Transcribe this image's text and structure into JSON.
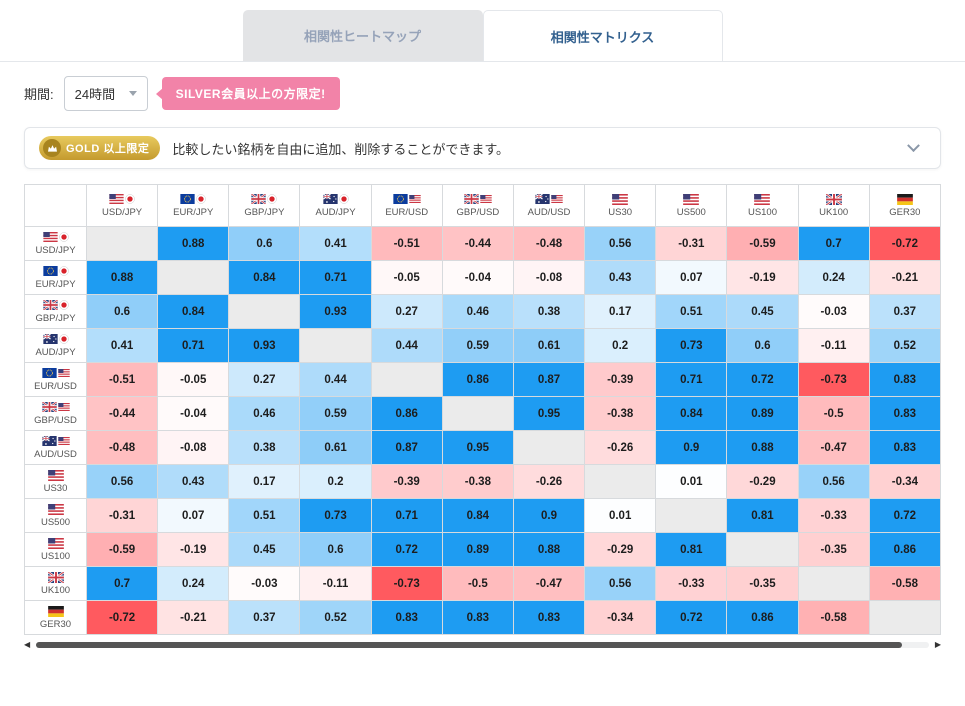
{
  "tabs": {
    "heatmap": "相関性ヒートマップ",
    "matrix": "相関性マトリクス"
  },
  "period": {
    "label": "期間:",
    "selected": "24時間",
    "badge": "SILVER会員以上の方限定!"
  },
  "gold_banner": {
    "badge": "GOLD 以上限定",
    "text": "比較したい銘柄を自由に追加、削除することができます。"
  },
  "colors": {
    "positive": "#1e9cf2",
    "negative": "#ff5a5f",
    "diagonal": "#ebebeb"
  },
  "chart_data": {
    "type": "heatmap",
    "title": "相関性マトリクス",
    "instruments": [
      {
        "name": "USD/JPY",
        "flags": [
          "us",
          "jp"
        ]
      },
      {
        "name": "EUR/JPY",
        "flags": [
          "eu",
          "jp"
        ]
      },
      {
        "name": "GBP/JPY",
        "flags": [
          "gb",
          "jp"
        ]
      },
      {
        "name": "AUD/JPY",
        "flags": [
          "au",
          "jp"
        ]
      },
      {
        "name": "EUR/USD",
        "flags": [
          "eu",
          "us"
        ]
      },
      {
        "name": "GBP/USD",
        "flags": [
          "gb",
          "us"
        ]
      },
      {
        "name": "AUD/USD",
        "flags": [
          "au",
          "us"
        ]
      },
      {
        "name": "US30",
        "flags": [
          "us"
        ]
      },
      {
        "name": "US500",
        "flags": [
          "us"
        ]
      },
      {
        "name": "US100",
        "flags": [
          "us"
        ]
      },
      {
        "name": "UK100",
        "flags": [
          "gb"
        ]
      },
      {
        "name": "GER30",
        "flags": [
          "de"
        ]
      }
    ],
    "matrix": [
      [
        null,
        0.88,
        0.6,
        0.41,
        -0.51,
        -0.44,
        -0.48,
        0.56,
        -0.31,
        -0.59,
        0.7,
        -0.72
      ],
      [
        0.88,
        null,
        0.84,
        0.71,
        -0.05,
        -0.04,
        -0.08,
        0.43,
        0.07,
        -0.19,
        0.24,
        -0.21
      ],
      [
        0.6,
        0.84,
        null,
        0.93,
        0.27,
        0.46,
        0.38,
        0.17,
        0.51,
        0.45,
        -0.03,
        0.37
      ],
      [
        0.41,
        0.71,
        0.93,
        null,
        0.44,
        0.59,
        0.61,
        0.2,
        0.73,
        0.6,
        -0.11,
        0.52
      ],
      [
        -0.51,
        -0.05,
        0.27,
        0.44,
        null,
        0.86,
        0.87,
        -0.39,
        0.71,
        0.72,
        -0.73,
        0.83
      ],
      [
        -0.44,
        -0.04,
        0.46,
        0.59,
        0.86,
        null,
        0.95,
        -0.38,
        0.84,
        0.89,
        -0.5,
        0.83
      ],
      [
        -0.48,
        -0.08,
        0.38,
        0.61,
        0.87,
        0.95,
        null,
        -0.26,
        0.9,
        0.88,
        -0.47,
        0.83
      ],
      [
        0.56,
        0.43,
        0.17,
        0.2,
        -0.39,
        -0.38,
        -0.26,
        null,
        0.01,
        -0.29,
        0.56,
        -0.34
      ],
      [
        -0.31,
        0.07,
        0.51,
        0.73,
        0.71,
        0.84,
        0.9,
        0.01,
        null,
        0.81,
        -0.33,
        0.72
      ],
      [
        -0.59,
        -0.19,
        0.45,
        0.6,
        0.72,
        0.89,
        0.88,
        -0.29,
        0.81,
        null,
        -0.35,
        0.86
      ],
      [
        0.7,
        0.24,
        -0.03,
        -0.11,
        -0.73,
        -0.5,
        -0.47,
        0.56,
        -0.33,
        -0.35,
        null,
        -0.58
      ],
      [
        -0.72,
        -0.21,
        0.37,
        0.52,
        0.83,
        0.83,
        0.83,
        -0.34,
        0.72,
        0.86,
        -0.58,
        null
      ]
    ]
  }
}
